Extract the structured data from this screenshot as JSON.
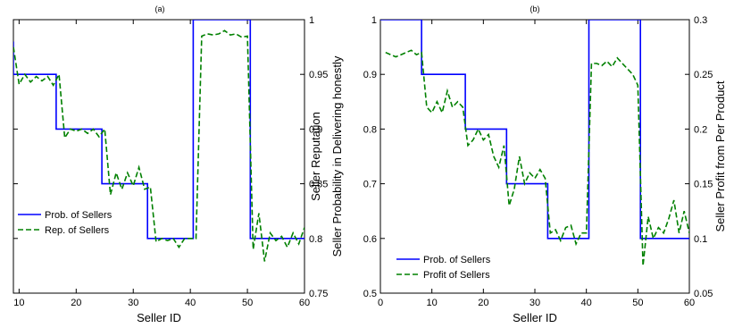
{
  "chart_data": [
    {
      "type": "line",
      "title": "(a)",
      "xlabel": "Seller ID",
      "ylabel": "",
      "y2label": "Seller Reputation",
      "xlim": [
        9,
        60
      ],
      "ylim": [
        0.75,
        1
      ],
      "xticks": [
        "10",
        "20",
        "30",
        "40",
        "50",
        "60"
      ],
      "yticks": [
        "0.75",
        "0.8",
        "0.85",
        "0.9",
        "0.95",
        "1"
      ],
      "grid": false,
      "legend_position": "lower-left",
      "series": [
        {
          "name": "Prob. of Sellers",
          "axis": "right",
          "color": "#0000ff",
          "style": "solid",
          "x": [
            9,
            9,
            16.5,
            16.5,
            24.5,
            24.5,
            32.5,
            32.5,
            40.5,
            40.5,
            50.5,
            50.5,
            60
          ],
          "y": [
            0.98,
            0.95,
            0.95,
            0.9,
            0.9,
            0.85,
            0.85,
            0.8,
            0.8,
            1.0,
            1.0,
            0.8,
            0.8
          ]
        },
        {
          "name": "Rep. of Sellers",
          "axis": "right",
          "color": "#008000",
          "style": "dashed",
          "x": [
            9,
            10,
            11,
            12,
            13,
            14,
            15,
            16,
            17,
            18,
            19,
            20,
            21,
            22,
            23,
            24,
            25,
            26,
            27,
            28,
            29,
            30,
            31,
            32,
            33,
            34,
            35,
            36,
            37,
            38,
            39,
            40,
            41,
            42,
            43,
            44,
            45,
            46,
            47,
            48,
            49,
            50,
            51,
            52,
            53,
            54,
            55,
            56,
            57,
            58,
            59,
            60
          ],
          "y": [
            0.975,
            0.941,
            0.95,
            0.943,
            0.948,
            0.944,
            0.948,
            0.94,
            0.95,
            0.892,
            0.9,
            0.898,
            0.9,
            0.896,
            0.9,
            0.893,
            0.9,
            0.84,
            0.86,
            0.845,
            0.86,
            0.848,
            0.865,
            0.845,
            0.847,
            0.797,
            0.8,
            0.798,
            0.8,
            0.792,
            0.8,
            0.8,
            0.8,
            0.985,
            0.987,
            0.986,
            0.987,
            0.99,
            0.986,
            0.987,
            0.984,
            0.985,
            0.79,
            0.823,
            0.779,
            0.805,
            0.798,
            0.802,
            0.792,
            0.805,
            0.795,
            0.81
          ]
        }
      ]
    },
    {
      "type": "line",
      "title": "(b)",
      "xlabel": "Seller ID",
      "ylabel": "Seller Probability in Delivering honestly",
      "y2label": "Seller Profit from Per Product",
      "xlim": [
        0,
        60
      ],
      "ylim": [
        0.5,
        1
      ],
      "y2lim": [
        0.05,
        0.3
      ],
      "xticks": [
        "0",
        "10",
        "20",
        "30",
        "40",
        "50",
        "60"
      ],
      "yticks": [
        "0.5",
        "0.6",
        "0.7",
        "0.8",
        "0.9",
        "1"
      ],
      "y2ticks": [
        "0.05",
        "0.1",
        "0.15",
        "0.2",
        "0.25",
        "0.3"
      ],
      "grid": false,
      "legend_position": "lower-left",
      "series": [
        {
          "name": "Prob. of Sellers",
          "axis": "left",
          "color": "#0000ff",
          "style": "solid",
          "x": [
            0,
            8,
            8,
            16.5,
            16.5,
            24.5,
            24.5,
            32.5,
            32.5,
            40.5,
            40.5,
            50.5,
            50.5,
            60
          ],
          "y": [
            1.0,
            1.0,
            0.9,
            0.9,
            0.8,
            0.8,
            0.7,
            0.7,
            0.6,
            0.6,
            1.0,
            1.0,
            0.6,
            0.6
          ]
        },
        {
          "name": "Profit of Sellers",
          "axis": "right",
          "color": "#008000",
          "style": "dashed",
          "x": [
            1,
            2,
            3,
            4,
            5,
            6,
            7,
            8,
            9,
            10,
            11,
            12,
            13,
            14,
            15,
            16,
            17,
            18,
            19,
            20,
            21,
            22,
            23,
            24,
            25,
            26,
            27,
            28,
            29,
            30,
            31,
            32,
            33,
            34,
            35,
            36,
            37,
            38,
            39,
            40,
            41,
            42,
            43,
            44,
            45,
            46,
            47,
            48,
            49,
            50,
            51,
            52,
            53,
            54,
            55,
            56,
            57,
            58,
            59,
            60
          ],
          "y": [
            0.27,
            0.268,
            0.266,
            0.268,
            0.27,
            0.272,
            0.268,
            0.27,
            0.22,
            0.215,
            0.225,
            0.215,
            0.235,
            0.22,
            0.225,
            0.22,
            0.185,
            0.19,
            0.2,
            0.19,
            0.195,
            0.175,
            0.165,
            0.185,
            0.13,
            0.145,
            0.175,
            0.15,
            0.16,
            0.155,
            0.163,
            0.155,
            0.105,
            0.108,
            0.098,
            0.11,
            0.112,
            0.095,
            0.105,
            0.105,
            0.26,
            0.26,
            0.258,
            0.262,
            0.257,
            0.265,
            0.26,
            0.255,
            0.25,
            0.24,
            0.075,
            0.12,
            0.1,
            0.11,
            0.105,
            0.118,
            0.135,
            0.105,
            0.125,
            0.105
          ]
        }
      ]
    }
  ]
}
